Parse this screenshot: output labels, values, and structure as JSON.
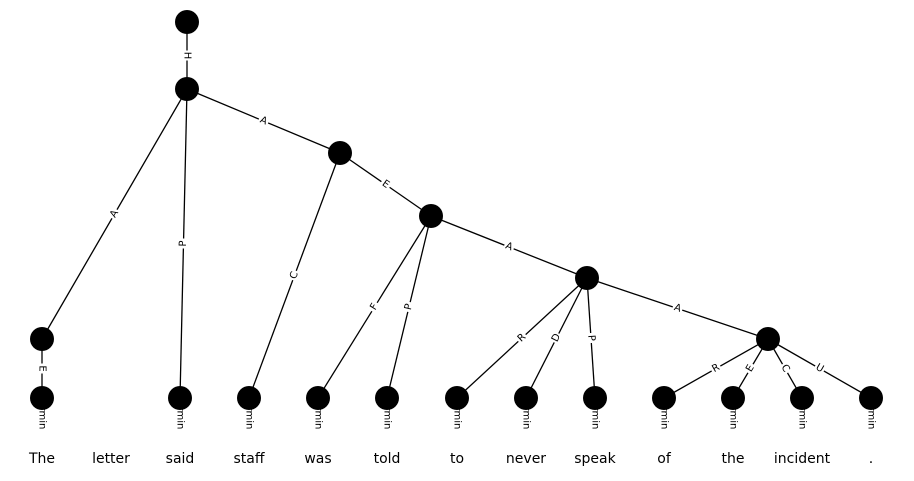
{
  "diagram": {
    "nodes": [
      {
        "id": "root"
      },
      {
        "id": "n1"
      },
      {
        "id": "n2"
      },
      {
        "id": "n3"
      },
      {
        "id": "n4"
      },
      {
        "id": "n5"
      },
      {
        "id": "n6"
      },
      {
        "id": "t0",
        "label": "Termin"
      },
      {
        "id": "t2",
        "label": "Termin"
      },
      {
        "id": "t3",
        "label": "Termin"
      },
      {
        "id": "t4",
        "label": "Termin"
      },
      {
        "id": "t5",
        "label": "Termin"
      },
      {
        "id": "t6",
        "label": "Termin"
      },
      {
        "id": "t7",
        "label": "Termin"
      },
      {
        "id": "t8",
        "label": "Termin"
      },
      {
        "id": "t9",
        "label": "Termin"
      },
      {
        "id": "t10",
        "label": "Termin"
      },
      {
        "id": "t11",
        "label": "Termin"
      },
      {
        "id": "t12",
        "label": "Termin"
      }
    ],
    "edges": [
      {
        "from": "root",
        "to": "n1",
        "label": "H"
      },
      {
        "from": "n1",
        "to": "n6",
        "label": "A"
      },
      {
        "from": "n1",
        "to": "t2",
        "label": "P"
      },
      {
        "from": "n1",
        "to": "n2",
        "label": "A"
      },
      {
        "from": "n6",
        "to": "t0",
        "label": "E"
      },
      {
        "from": "n2",
        "to": "t3",
        "label": "C"
      },
      {
        "from": "n2",
        "to": "n3",
        "label": "E"
      },
      {
        "from": "n3",
        "to": "t4",
        "label": "F"
      },
      {
        "from": "n3",
        "to": "t5",
        "label": "P"
      },
      {
        "from": "n3",
        "to": "n4",
        "label": "A"
      },
      {
        "from": "n4",
        "to": "t6",
        "label": "R"
      },
      {
        "from": "n4",
        "to": "t7",
        "label": "D"
      },
      {
        "from": "n4",
        "to": "t8",
        "label": "P"
      },
      {
        "from": "n4",
        "to": "n5",
        "label": "A"
      },
      {
        "from": "n5",
        "to": "t9",
        "label": "R"
      },
      {
        "from": "n5",
        "to": "t10",
        "label": "E"
      },
      {
        "from": "n5",
        "to": "t11",
        "label": "C"
      },
      {
        "from": "n5",
        "to": "t12",
        "label": "U"
      }
    ],
    "words": [
      "The",
      "letter",
      "said",
      "staff",
      "was",
      "told",
      "to",
      "never",
      "speak",
      "of",
      "the",
      "incident",
      "."
    ]
  }
}
